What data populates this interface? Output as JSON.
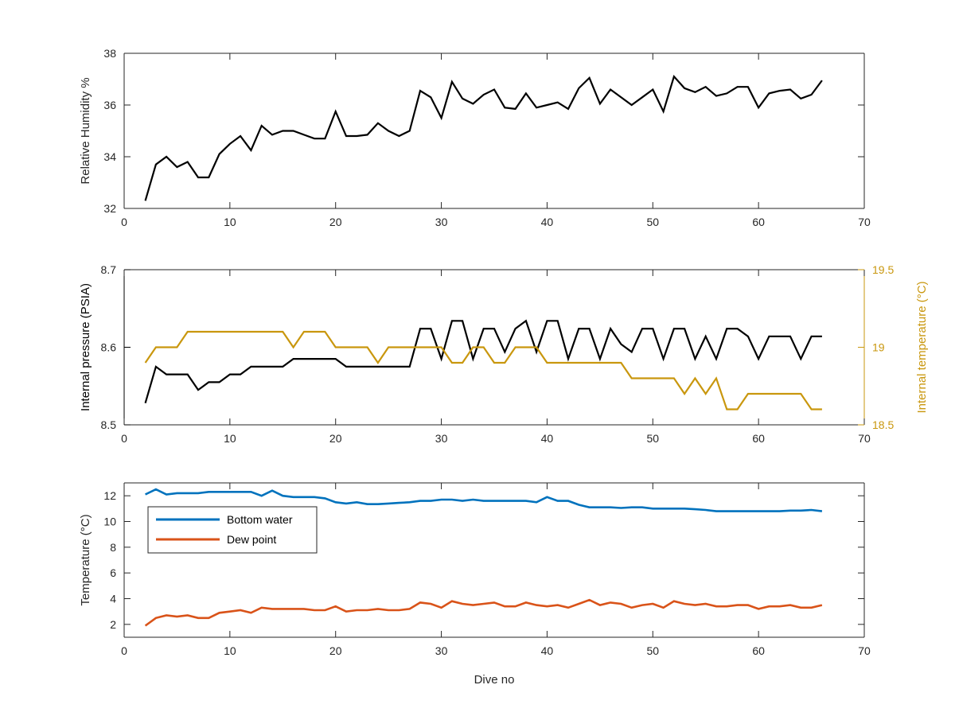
{
  "chart_data": [
    {
      "type": "line",
      "xlabel": "",
      "ylabel": "Relative Humidity %",
      "xlim": [
        0,
        70
      ],
      "ylim": [
        32,
        38
      ],
      "xticks": [
        0,
        10,
        20,
        30,
        40,
        50,
        60,
        70
      ],
      "yticks": [
        32,
        34,
        36,
        38
      ],
      "grid": false,
      "series": [
        {
          "color": "#000000",
          "x": [
            2,
            3,
            4,
            5,
            6,
            7,
            8,
            9,
            10,
            11,
            12,
            13,
            14,
            15,
            16,
            17,
            18,
            19,
            20,
            21,
            22,
            23,
            24,
            25,
            26,
            27,
            28,
            29,
            30,
            31,
            32,
            33,
            34,
            35,
            36,
            37,
            38,
            39,
            40,
            41,
            42,
            43,
            44,
            45,
            46,
            47,
            48,
            49,
            50,
            51,
            52,
            53,
            54,
            55,
            56,
            57,
            58,
            59,
            60,
            61,
            62,
            63,
            64,
            65,
            66
          ],
          "y": [
            32.3,
            33.7,
            34.0,
            33.6,
            33.8,
            33.2,
            33.2,
            34.1,
            34.5,
            34.8,
            34.25,
            35.2,
            34.85,
            35.0,
            35.0,
            34.85,
            34.7,
            34.7,
            35.75,
            34.8,
            34.8,
            34.85,
            35.3,
            35.0,
            34.8,
            35.0,
            36.55,
            36.3,
            35.5,
            36.9,
            36.25,
            36.05,
            36.4,
            36.6,
            35.9,
            35.85,
            36.45,
            35.9,
            36.0,
            36.1,
            35.85,
            36.65,
            37.05,
            36.05,
            36.6,
            36.3,
            36.0,
            36.3,
            36.6,
            35.75,
            37.1,
            36.65,
            36.5,
            36.7,
            36.35,
            36.45,
            36.7,
            36.7,
            35.9,
            36.45,
            36.55,
            36.6,
            36.25,
            36.4,
            36.95
          ]
        }
      ]
    },
    {
      "type": "line",
      "xlabel": "",
      "ylabel": "Internal pressure (PSIA)",
      "ylabel_right": "Internal temperature (°C)",
      "xlim": [
        0,
        70
      ],
      "ylim": [
        8.5,
        8.7
      ],
      "ylim_right": [
        18.5,
        19.5
      ],
      "xticks": [
        0,
        10,
        20,
        30,
        40,
        50,
        60,
        70
      ],
      "yticks": [
        8.5,
        8.6,
        8.7
      ],
      "yticks_right": [
        18.5,
        19,
        19.5
      ],
      "ytick_labels": [
        "8.5",
        "8.6",
        "8.7"
      ],
      "ytick_labels_right": [
        "18.5",
        "19",
        "19.5"
      ],
      "grid": false,
      "series": [
        {
          "axis": "left",
          "color": "#000000",
          "x": [
            2,
            3,
            4,
            5,
            6,
            7,
            8,
            9,
            10,
            11,
            12,
            13,
            14,
            15,
            16,
            17,
            18,
            19,
            20,
            21,
            22,
            23,
            24,
            25,
            26,
            27,
            28,
            29,
            30,
            31,
            32,
            33,
            34,
            35,
            36,
            37,
            38,
            39,
            40,
            41,
            42,
            43,
            44,
            45,
            46,
            47,
            48,
            49,
            50,
            51,
            52,
            53,
            54,
            55,
            56,
            57,
            58,
            59,
            60,
            61,
            62,
            63,
            64,
            65,
            66
          ],
          "y": [
            8.528,
            8.575,
            8.565,
            8.565,
            8.565,
            8.545,
            8.555,
            8.555,
            8.565,
            8.565,
            8.575,
            8.575,
            8.575,
            8.575,
            8.585,
            8.585,
            8.585,
            8.585,
            8.585,
            8.575,
            8.575,
            8.575,
            8.575,
            8.575,
            8.575,
            8.575,
            8.624,
            8.624,
            8.585,
            8.634,
            8.634,
            8.585,
            8.624,
            8.624,
            8.594,
            8.624,
            8.634,
            8.594,
            8.634,
            8.634,
            8.585,
            8.624,
            8.624,
            8.585,
            8.624,
            8.604,
            8.594,
            8.624,
            8.624,
            8.585,
            8.624,
            8.624,
            8.585,
            8.614,
            8.585,
            8.624,
            8.624,
            8.614,
            8.585,
            8.614,
            8.614,
            8.614,
            8.585,
            8.614,
            8.614
          ]
        },
        {
          "axis": "right",
          "color": "#c9970e",
          "x": [
            2,
            3,
            4,
            5,
            6,
            7,
            8,
            9,
            10,
            11,
            12,
            13,
            14,
            15,
            16,
            17,
            18,
            19,
            20,
            21,
            22,
            23,
            24,
            25,
            26,
            27,
            28,
            29,
            30,
            31,
            32,
            33,
            34,
            35,
            36,
            37,
            38,
            39,
            40,
            41,
            42,
            43,
            44,
            45,
            46,
            47,
            48,
            49,
            50,
            51,
            52,
            53,
            54,
            55,
            56,
            57,
            58,
            59,
            60,
            61,
            62,
            63,
            64,
            65,
            66
          ],
          "y": [
            18.9,
            19.0,
            19.0,
            19.0,
            19.1,
            19.1,
            19.1,
            19.1,
            19.1,
            19.1,
            19.1,
            19.1,
            19.1,
            19.1,
            19.0,
            19.1,
            19.1,
            19.1,
            19.0,
            19.0,
            19.0,
            19.0,
            18.9,
            19.0,
            19.0,
            19.0,
            19.0,
            19.0,
            19.0,
            18.9,
            18.9,
            19.0,
            19.0,
            18.9,
            18.9,
            19.0,
            19.0,
            19.0,
            18.9,
            18.9,
            18.9,
            18.9,
            18.9,
            18.9,
            18.9,
            18.9,
            18.8,
            18.8,
            18.8,
            18.8,
            18.8,
            18.7,
            18.8,
            18.7,
            18.8,
            18.6,
            18.6,
            18.7,
            18.7,
            18.7,
            18.7,
            18.7,
            18.7,
            18.6,
            18.6
          ]
        }
      ]
    },
    {
      "type": "line",
      "xlabel": "Dive no",
      "ylabel": "Temperature (°C)",
      "xlim": [
        0,
        70
      ],
      "ylim": [
        1,
        13
      ],
      "xticks": [
        0,
        10,
        20,
        30,
        40,
        50,
        60,
        70
      ],
      "yticks": [
        2,
        4,
        6,
        8,
        10,
        12
      ],
      "grid": false,
      "legend": "top-left",
      "series": [
        {
          "name": "Bottom water",
          "color": "#0072bd",
          "x": [
            2,
            3,
            4,
            5,
            6,
            7,
            8,
            9,
            10,
            11,
            12,
            13,
            14,
            15,
            16,
            17,
            18,
            19,
            20,
            21,
            22,
            23,
            24,
            25,
            26,
            27,
            28,
            29,
            30,
            31,
            32,
            33,
            34,
            35,
            36,
            37,
            38,
            39,
            40,
            41,
            42,
            43,
            44,
            45,
            46,
            47,
            48,
            49,
            50,
            51,
            52,
            53,
            54,
            55,
            56,
            57,
            58,
            59,
            60,
            61,
            62,
            63,
            64,
            65,
            66
          ],
          "y": [
            12.1,
            12.5,
            12.1,
            12.2,
            12.2,
            12.2,
            12.3,
            12.3,
            12.3,
            12.3,
            12.3,
            12.0,
            12.4,
            12.0,
            11.9,
            11.9,
            11.9,
            11.8,
            11.5,
            11.4,
            11.5,
            11.35,
            11.35,
            11.4,
            11.45,
            11.5,
            11.6,
            11.6,
            11.7,
            11.7,
            11.6,
            11.7,
            11.6,
            11.6,
            11.6,
            11.6,
            11.6,
            11.5,
            11.9,
            11.6,
            11.6,
            11.3,
            11.1,
            11.1,
            11.1,
            11.05,
            11.1,
            11.1,
            11.0,
            11.0,
            11.0,
            11.0,
            10.95,
            10.9,
            10.8,
            10.8,
            10.8,
            10.8,
            10.8,
            10.8,
            10.8,
            10.85,
            10.85,
            10.9,
            10.8
          ]
        },
        {
          "name": "Dew point",
          "color": "#d95319",
          "x": [
            2,
            3,
            4,
            5,
            6,
            7,
            8,
            9,
            10,
            11,
            12,
            13,
            14,
            15,
            16,
            17,
            18,
            19,
            20,
            21,
            22,
            23,
            24,
            25,
            26,
            27,
            28,
            29,
            30,
            31,
            32,
            33,
            34,
            35,
            36,
            37,
            38,
            39,
            40,
            41,
            42,
            43,
            44,
            45,
            46,
            47,
            48,
            49,
            50,
            51,
            52,
            53,
            54,
            55,
            56,
            57,
            58,
            59,
            60,
            61,
            62,
            63,
            64,
            65,
            66
          ],
          "y": [
            1.9,
            2.5,
            2.7,
            2.6,
            2.7,
            2.5,
            2.5,
            2.9,
            3.0,
            3.1,
            2.9,
            3.3,
            3.2,
            3.2,
            3.2,
            3.2,
            3.1,
            3.1,
            3.4,
            3.0,
            3.1,
            3.1,
            3.2,
            3.1,
            3.1,
            3.2,
            3.7,
            3.6,
            3.3,
            3.8,
            3.6,
            3.5,
            3.6,
            3.7,
            3.4,
            3.4,
            3.7,
            3.5,
            3.4,
            3.5,
            3.3,
            3.6,
            3.9,
            3.5,
            3.7,
            3.6,
            3.3,
            3.5,
            3.6,
            3.3,
            3.8,
            3.6,
            3.5,
            3.6,
            3.4,
            3.4,
            3.5,
            3.5,
            3.2,
            3.4,
            3.4,
            3.5,
            3.3,
            3.3,
            3.5
          ]
        }
      ]
    }
  ]
}
